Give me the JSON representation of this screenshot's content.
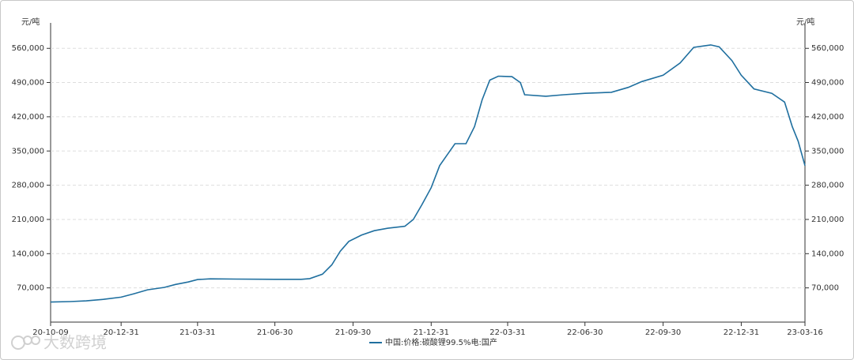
{
  "chart_data": {
    "type": "line",
    "y_unit": "元/吨",
    "watermark": "大数跨境",
    "xlim": [
      "20-10-09",
      "23-03-16"
    ],
    "xticks": [
      "20-10-09",
      "20-12-31",
      "21-03-31",
      "21-06-30",
      "21-09-30",
      "21-12-31",
      "22-03-31",
      "22-06-30",
      "22-09-30",
      "22-12-31",
      "23-03-16"
    ],
    "ylim": [
      0,
      612000
    ],
    "yticks": [
      {
        "value": 70000,
        "label": "70,000"
      },
      {
        "value": 140000,
        "label": "140,000"
      },
      {
        "value": 210000,
        "label": "210,000"
      },
      {
        "value": 280000,
        "label": "280,000"
      },
      {
        "value": 350000,
        "label": "350,000"
      },
      {
        "value": 420000,
        "label": "420,000"
      },
      {
        "value": 490000,
        "label": "490,000"
      },
      {
        "value": 560000,
        "label": "560,000"
      }
    ],
    "grid": true,
    "x": [
      "20-10-09",
      "20-11-01",
      "20-11-20",
      "20-12-10",
      "20-12-31",
      "21-01-15",
      "21-01-31",
      "21-02-20",
      "21-03-05",
      "21-03-20",
      "21-03-31",
      "21-04-15",
      "21-05-15",
      "21-06-30",
      "21-07-31",
      "21-08-10",
      "21-08-25",
      "21-09-05",
      "21-09-15",
      "21-09-25",
      "21-10-10",
      "21-10-25",
      "21-11-10",
      "21-11-30",
      "21-12-10",
      "21-12-20",
      "21-12-31",
      "22-01-10",
      "22-01-20",
      "22-01-28",
      "22-02-10",
      "22-02-20",
      "22-03-01",
      "22-03-10",
      "22-03-20",
      "22-04-05",
      "22-04-15",
      "22-04-20",
      "22-05-15",
      "22-06-05",
      "22-06-30",
      "22-07-31",
      "22-08-20",
      "22-09-05",
      "22-09-30",
      "22-10-20",
      "22-11-05",
      "22-11-25",
      "22-12-05",
      "22-12-20",
      "22-12-31",
      "23-01-15",
      "23-02-05",
      "23-02-20",
      "23-03-01",
      "23-03-08",
      "23-03-16"
    ],
    "series": [
      {
        "name": "中国:价格:碳酸锂99.5%电:国产",
        "color": "#1f6f9f",
        "values": [
          41000,
          42000,
          43500,
          46500,
          51000,
          58000,
          66000,
          71000,
          77000,
          82000,
          87000,
          88500,
          88000,
          87500,
          87500,
          89000,
          98000,
          117000,
          145000,
          165000,
          178000,
          187000,
          192000,
          196000,
          210000,
          240000,
          275000,
          320000,
          345000,
          365000,
          365000,
          400000,
          455000,
          495000,
          503000,
          502000,
          490000,
          465000,
          462000,
          465000,
          468000,
          470000,
          480000,
          492000,
          505000,
          530000,
          562000,
          567000,
          563000,
          535000,
          505000,
          477000,
          468000,
          450000,
          400000,
          370000,
          320000
        ]
      }
    ]
  }
}
